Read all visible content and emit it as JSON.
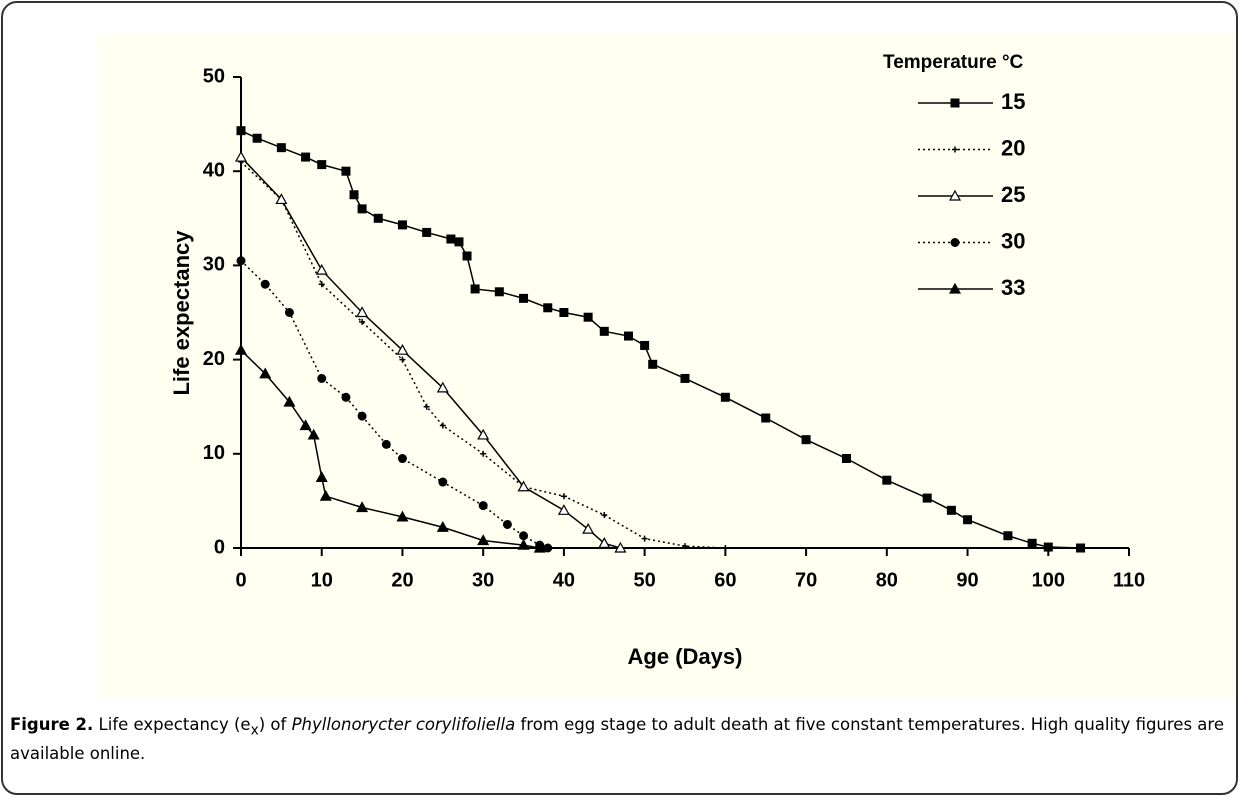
{
  "chart_data": {
    "type": "line",
    "xlabel": "Age (Days)",
    "ylabel": "Life expectancy",
    "legend_title": "Temperature °C",
    "xlim": [
      0,
      110
    ],
    "xticks": [
      0,
      10,
      20,
      30,
      40,
      50,
      60,
      70,
      80,
      90,
      100,
      110
    ],
    "ylim": [
      0,
      50
    ],
    "yticks": [
      0,
      10,
      20,
      30,
      40,
      50
    ],
    "series": [
      {
        "name": "15",
        "color": "#000000",
        "marker": "square",
        "dash": "solid",
        "x": [
          0,
          2,
          5,
          8,
          10,
          13,
          14,
          15,
          17,
          20,
          23,
          26,
          27,
          28,
          29,
          32,
          35,
          38,
          40,
          43,
          45,
          48,
          50,
          51,
          55,
          60,
          65,
          70,
          75,
          80,
          85,
          88,
          90,
          95,
          98,
          100,
          104
        ],
        "values": [
          44.3,
          43.5,
          42.5,
          41.5,
          40.7,
          40,
          37.5,
          36,
          35,
          34.3,
          33.5,
          32.8,
          32.5,
          31,
          27.5,
          27.2,
          26.5,
          25.5,
          25,
          24.5,
          23,
          22.5,
          21.5,
          19.5,
          18,
          16,
          13.8,
          11.5,
          9.5,
          7.2,
          5.3,
          4,
          3,
          1.3,
          0.5,
          0.1,
          0
        ]
      },
      {
        "name": "20",
        "color": "#000000",
        "marker": "plus",
        "dash": "dotted",
        "x": [
          0,
          5,
          10,
          15,
          20,
          23,
          25,
          30,
          35,
          40,
          45,
          50,
          55,
          60
        ],
        "values": [
          41,
          37,
          28,
          24,
          20,
          15,
          13,
          10,
          6.5,
          5.5,
          3.5,
          1,
          0.2,
          0
        ]
      },
      {
        "name": "25",
        "color": "#000000",
        "marker": "open-triangle",
        "dash": "solid",
        "x": [
          0,
          5,
          10,
          15,
          20,
          25,
          30,
          35,
          40,
          43,
          45,
          47
        ],
        "values": [
          41.5,
          37,
          29.5,
          25,
          21,
          17,
          12,
          6.5,
          4,
          2,
          0.5,
          0
        ]
      },
      {
        "name": "30",
        "color": "#000000",
        "marker": "circle",
        "dash": "dotted",
        "x": [
          0,
          3,
          6,
          10,
          13,
          15,
          18,
          20,
          25,
          30,
          33,
          35,
          37,
          38
        ],
        "values": [
          30.5,
          28,
          25,
          18,
          16,
          14,
          11,
          9.5,
          7,
          4.5,
          2.5,
          1.3,
          0.3,
          0
        ]
      },
      {
        "name": "33",
        "color": "#000000",
        "marker": "triangle",
        "dash": "solid",
        "x": [
          0,
          3,
          6,
          8,
          9,
          10,
          10.5,
          15,
          20,
          25,
          30,
          35,
          37
        ],
        "values": [
          21,
          18.5,
          15.5,
          13,
          12,
          7.5,
          5.5,
          4.3,
          3.3,
          2.2,
          0.8,
          0.3,
          0
        ]
      }
    ]
  },
  "caption": {
    "label": "Figure 2.",
    "text_before": " Life expectancy (e",
    "subscript": "x",
    "text_middle": ") of ",
    "species": "Phyllonorycter corylifoliella",
    "text_after": " from egg stage to adult death at five constant temperatures. High quality figures are available online."
  }
}
